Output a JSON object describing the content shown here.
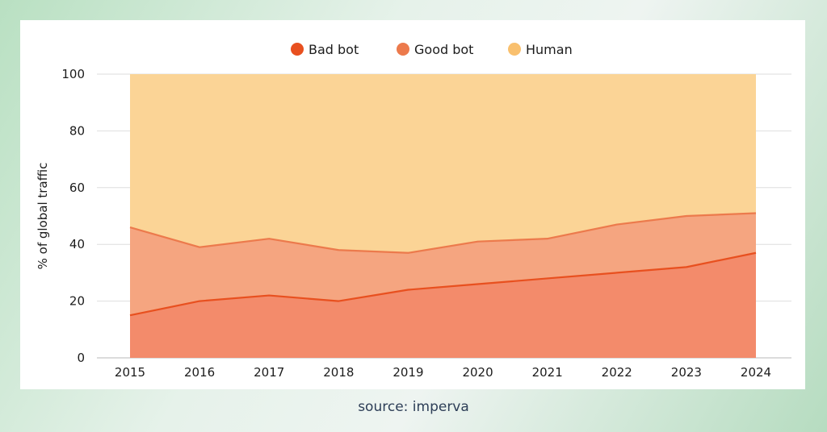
{
  "chart_data": {
    "type": "area",
    "stacked": true,
    "title": "",
    "xlabel": "",
    "ylabel": "% of global traffic",
    "ylim": [
      0,
      100
    ],
    "yticks": [
      0,
      20,
      40,
      60,
      80,
      100
    ],
    "grid": "horizontal",
    "legend_position": "top-center",
    "categories": [
      "2015",
      "2016",
      "2017",
      "2018",
      "2019",
      "2020",
      "2021",
      "2022",
      "2023",
      "2024"
    ],
    "series": [
      {
        "name": "Bad bot",
        "color": "#e8501f",
        "fill": "#f38b6b",
        "values": [
          15,
          20,
          22,
          20,
          24,
          26,
          28,
          30,
          32,
          37
        ]
      },
      {
        "name": "Good bot",
        "color": "#ec7a4c",
        "fill": "#f5a580",
        "values": [
          31,
          19,
          20,
          18,
          13,
          15,
          14,
          17,
          18,
          14
        ]
      },
      {
        "name": "Human",
        "color": "#f9c06e",
        "fill": "#fbd496",
        "values": [
          54,
          61,
          58,
          62,
          63,
          59,
          58,
          53,
          50,
          49
        ]
      }
    ]
  },
  "source": "source: imperva"
}
